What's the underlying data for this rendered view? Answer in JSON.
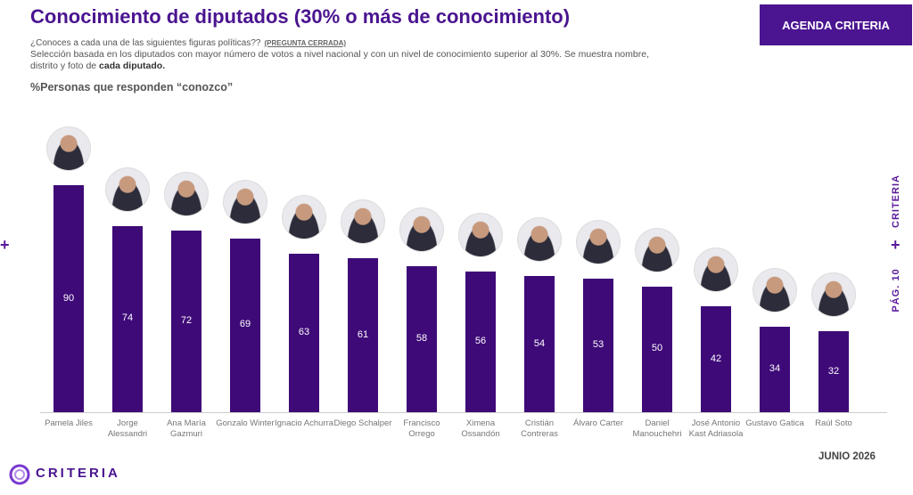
{
  "header": {
    "title": "Conocimiento de diputados (30% o más de conocimiento)",
    "question": "¿Conoces a cada una de las siguientes figuras políticas??",
    "question_tag": "(PREGUNTA CERRADA)",
    "description": "Selección basada en los diputados con mayor número de votos a nivel nacional y con un nivel de conocimiento superior al 30%. Se muestra nombre, distrito y foto de",
    "description_bold": "cada diputado.",
    "button": "AGENDA CRITERIA"
  },
  "chart_data": {
    "type": "bar",
    "title": "%Personas que responden “conozco”",
    "categories": [
      "Pamela Jiles",
      "Jorge Alessandri",
      "Ana María Gazmuri",
      "Gonzalo Winter",
      "Ignacio Achurra",
      "Diego Schalper",
      "Francisco Orrego",
      "Ximena Ossandón",
      "Cristián Contreras",
      "Álvaro Carter",
      "Daniel Manouchehri",
      "José Antonio Kast Adriasola",
      "Gustavo Gatica",
      "Raúl Soto"
    ],
    "values": [
      90,
      74,
      72,
      69,
      63,
      61,
      58,
      56,
      54,
      53,
      50,
      42,
      34,
      32
    ],
    "color": "#3e0a78"
  },
  "footer": {
    "date": "JUNIO 2026",
    "logo": "CRITERIA",
    "page": "PÁG. 10",
    "side_brand": "CRITERIA"
  }
}
